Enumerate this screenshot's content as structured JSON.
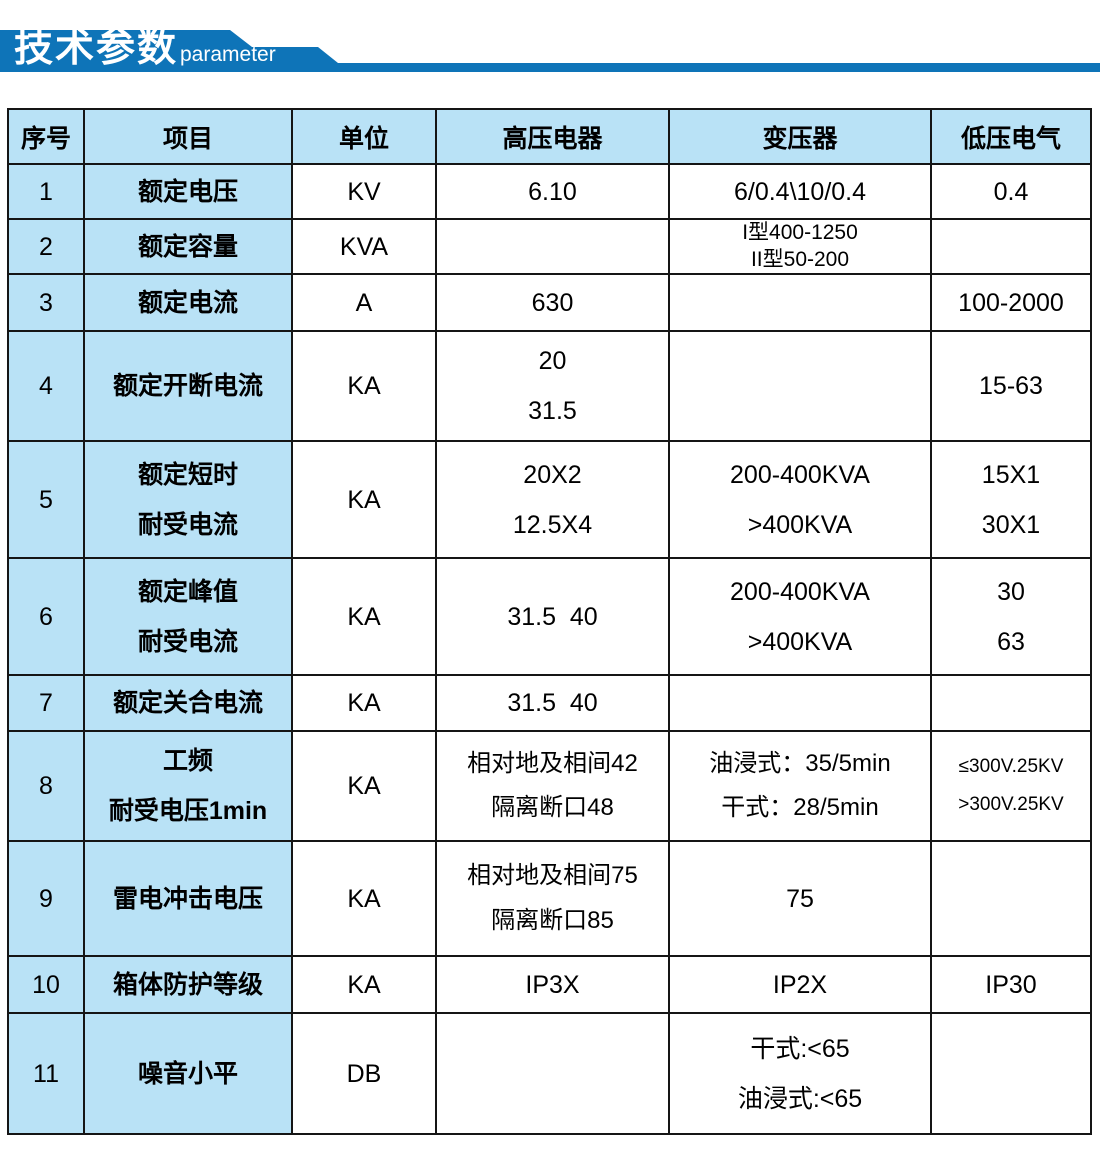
{
  "banner": {
    "title": "技术参数",
    "subtitle": "parameter"
  },
  "colors": {
    "brand_blue": "#0e74b8",
    "cell_light_blue": "#b9e2f6",
    "border": "#151515"
  },
  "table": {
    "headers": [
      "序号",
      "项目",
      "单位",
      "高压电器",
      "变压器",
      "低压电气"
    ],
    "rows": [
      {
        "cells": [
          "1",
          "额定电压",
          "KV",
          "6.10",
          "6/0.4\\10/0.4",
          "0.4"
        ]
      },
      {
        "cells": [
          "2",
          "额定容量",
          "KVA",
          "",
          [
            "I型400-1250",
            "II型50-200"
          ],
          ""
        ]
      },
      {
        "cells": [
          "3",
          "额定电流",
          "A",
          "630",
          "",
          "100-2000"
        ]
      },
      {
        "cells": [
          "4",
          "额定开断电流",
          "KA",
          [
            "20",
            "31.5"
          ],
          "",
          "15-63"
        ]
      },
      {
        "cells": [
          "5",
          [
            "额定短时",
            "耐受电流"
          ],
          "KA",
          [
            "20X2",
            "12.5X4"
          ],
          [
            "200-400KVA",
            ">400KVA"
          ],
          [
            "15X1",
            "30X1"
          ]
        ]
      },
      {
        "cells": [
          "6",
          [
            "额定峰值",
            "耐受电流"
          ],
          "KA",
          "31.5  40",
          [
            "200-400KVA",
            ">400KVA"
          ],
          [
            "30",
            "63"
          ]
        ]
      },
      {
        "cells": [
          "7",
          "额定关合电流",
          "KA",
          "31.5  40",
          "",
          ""
        ]
      },
      {
        "cells": [
          "8",
          [
            "工频",
            "耐受电压1min"
          ],
          "KA",
          [
            "相对地及相间42",
            "隔离断口48"
          ],
          [
            "油浸式：35/5min",
            "干式：28/5min"
          ],
          [
            "≤300V.25KV",
            ">300V.25KV"
          ]
        ]
      },
      {
        "cells": [
          "9",
          "雷电冲击电压",
          "KA",
          [
            "相对地及相间75",
            "隔离断口85"
          ],
          "75",
          ""
        ]
      },
      {
        "cells": [
          "10",
          "箱体防护等级",
          "KA",
          "IP3X",
          "IP2X",
          "IP30"
        ]
      },
      {
        "cells": [
          "11",
          "噪音小平",
          "DB",
          "",
          [
            "干式:<65",
            "油浸式:<65"
          ],
          ""
        ]
      }
    ]
  }
}
